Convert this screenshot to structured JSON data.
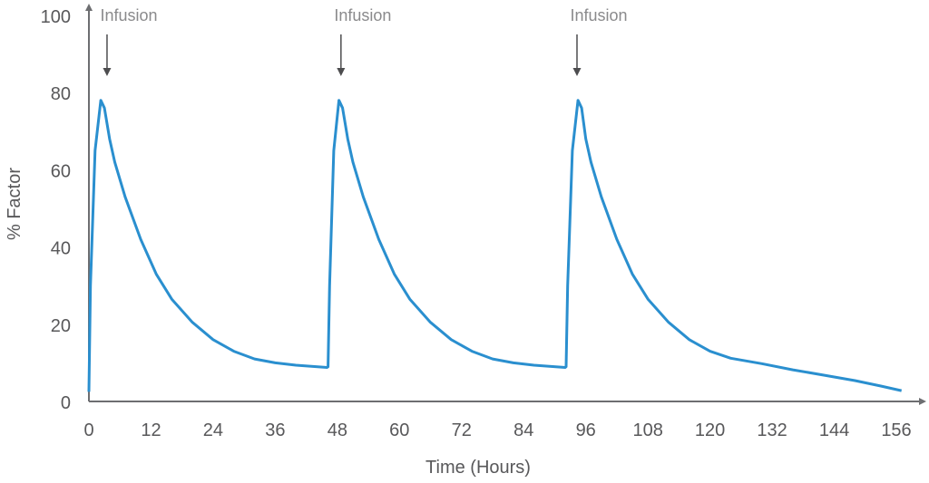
{
  "chart_data": {
    "type": "line",
    "title": "",
    "xlabel": "Time (Hours)",
    "ylabel": "% Factor",
    "xlim": [
      0,
      160
    ],
    "ylim": [
      0,
      100
    ],
    "xticks": [
      0,
      12,
      24,
      36,
      48,
      60,
      72,
      84,
      96,
      108,
      120,
      132,
      144,
      156
    ],
    "yticks": [
      0,
      20,
      40,
      60,
      80,
      100
    ],
    "grid": false,
    "line_color": "#2a8fcf",
    "axis_color": "#6d6e71",
    "annotations": [
      {
        "text": "Infusion",
        "x": 3.5
      },
      {
        "text": "Infusion",
        "x": 48.7
      },
      {
        "text": "Infusion",
        "x": 94.3
      }
    ],
    "series": [
      {
        "name": "% Factor",
        "points": [
          [
            0,
            2.5
          ],
          [
            0.3,
            30
          ],
          [
            1.2,
            65
          ],
          [
            2.3,
            78
          ],
          [
            3,
            76
          ],
          [
            4,
            68
          ],
          [
            5,
            62
          ],
          [
            7,
            53
          ],
          [
            10,
            42
          ],
          [
            13,
            33
          ],
          [
            16,
            26.5
          ],
          [
            20,
            20.5
          ],
          [
            24,
            16
          ],
          [
            28,
            13
          ],
          [
            32,
            11
          ],
          [
            36,
            10
          ],
          [
            40,
            9.4
          ],
          [
            46,
            8.8
          ],
          [
            46.2,
            9
          ],
          [
            46.5,
            30
          ],
          [
            47.3,
            65
          ],
          [
            48.3,
            78
          ],
          [
            49,
            76
          ],
          [
            50,
            68
          ],
          [
            51,
            62
          ],
          [
            53,
            53
          ],
          [
            56,
            42
          ],
          [
            59,
            33
          ],
          [
            62,
            26.5
          ],
          [
            66,
            20.5
          ],
          [
            70,
            16
          ],
          [
            74,
            13
          ],
          [
            78,
            11
          ],
          [
            82,
            10
          ],
          [
            86,
            9.4
          ],
          [
            92,
            8.8
          ],
          [
            92.2,
            9
          ],
          [
            92.5,
            30
          ],
          [
            93.4,
            65
          ],
          [
            94.5,
            78
          ],
          [
            95.2,
            76
          ],
          [
            96,
            68
          ],
          [
            97,
            62
          ],
          [
            99,
            53
          ],
          [
            102,
            42
          ],
          [
            105,
            33
          ],
          [
            108,
            26.5
          ],
          [
            112,
            20.5
          ],
          [
            116,
            16
          ],
          [
            120,
            13
          ],
          [
            124,
            11.2
          ],
          [
            130,
            9.8
          ],
          [
            136,
            8.2
          ],
          [
            142,
            6.8
          ],
          [
            148,
            5.4
          ],
          [
            153,
            4
          ],
          [
            157,
            2.8
          ]
        ]
      }
    ]
  }
}
